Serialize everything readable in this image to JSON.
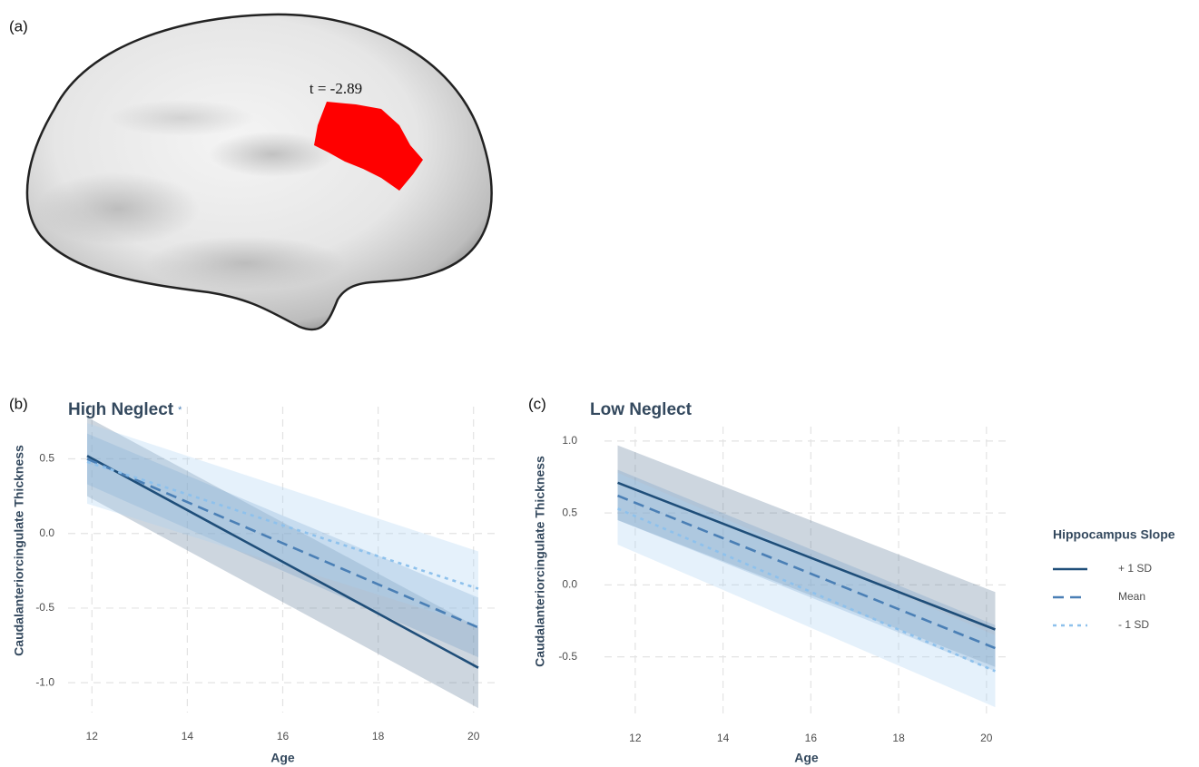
{
  "figure": {
    "panel_labels": [
      "(a)",
      "(b)",
      "(c)"
    ],
    "annotation": "t = -2.89"
  },
  "chart_data": [
    {
      "type": "line",
      "title": "High Neglect",
      "title_note": "*",
      "x_label": "Age",
      "y_label": "Caudalanteriorcingulate Thickness",
      "x": [
        11.9,
        20.1
      ],
      "series": [
        {
          "name": "+ 1 SD",
          "color": "#1f4e79",
          "dash": "solid",
          "values": [
            0.52,
            -0.9
          ],
          "lower": [
            0.25,
            -1.17
          ],
          "upper": [
            0.78,
            -0.63
          ],
          "band_color": "#5a7894"
        },
        {
          "name": "Mean",
          "color": "#4a7fb5",
          "dash": "dashed",
          "values": [
            0.5,
            -0.63
          ],
          "lower": [
            0.33,
            -0.83
          ],
          "upper": [
            0.67,
            -0.43
          ],
          "band_color": "#6f9cc8"
        },
        {
          "name": "- 1 SD",
          "color": "#8ec1ec",
          "dash": "dotted",
          "values": [
            0.48,
            -0.37
          ],
          "lower": [
            0.2,
            -0.62
          ],
          "upper": [
            0.74,
            -0.12
          ],
          "band_color": "#a9d0f2"
        }
      ],
      "xlim": [
        11.5,
        20.5
      ],
      "ylim": [
        -1.2,
        0.85
      ],
      "xticks": [
        12,
        14,
        16,
        18,
        20
      ],
      "yticks": [
        {
          "value": -1,
          "label": "-1.0"
        },
        -0.5,
        {
          "value": 0,
          "label": "0.0"
        },
        0.5
      ],
      "grid": true
    },
    {
      "type": "line",
      "title": "Low Neglect",
      "x_label": "Age",
      "y_label": "Caudalanteriorcingulate Thickness",
      "legend_title": "Hippocampus Slope",
      "legend": "right",
      "x": [
        11.6,
        20.2
      ],
      "series": [
        {
          "name": "+ 1 SD",
          "color": "#1f4e79",
          "dash": "solid",
          "values": [
            0.71,
            -0.31
          ],
          "lower": [
            0.45,
            -0.57
          ],
          "upper": [
            0.97,
            -0.05
          ],
          "band_color": "#5a7894"
        },
        {
          "name": "Mean",
          "color": "#4a7fb5",
          "dash": "dashed",
          "values": [
            0.62,
            -0.44
          ],
          "lower": [
            0.45,
            -0.6
          ],
          "upper": [
            0.8,
            -0.28
          ],
          "band_color": "#6f9cc8"
        },
        {
          "name": "- 1 SD",
          "color": "#8ec1ec",
          "dash": "dotted",
          "values": [
            0.53,
            -0.6
          ],
          "lower": [
            0.28,
            -0.85
          ],
          "upper": [
            0.78,
            -0.35
          ],
          "band_color": "#a9d0f2"
        }
      ],
      "xlim": [
        11.3,
        20.5
      ],
      "ylim": [
        -0.9,
        1.1
      ],
      "xticks": [
        12,
        14,
        16,
        18,
        20
      ],
      "yticks": [
        -0.5,
        {
          "value": 0,
          "label": "0.0"
        },
        0.5,
        {
          "value": 1,
          "label": "1.0"
        }
      ],
      "grid": true
    }
  ]
}
